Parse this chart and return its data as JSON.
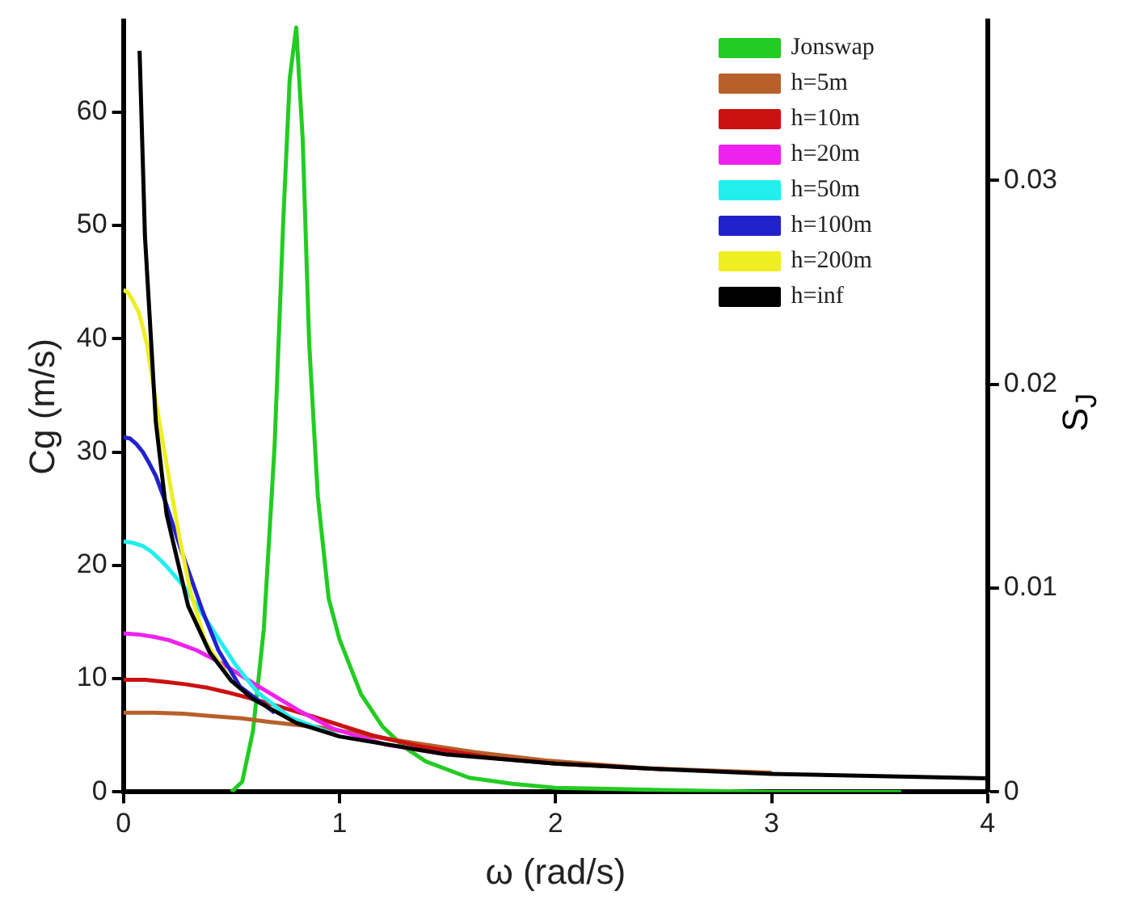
{
  "chart_data": {
    "type": "line",
    "xlabel": "ω (rad/s)",
    "ylabel": "Cg (m/s)",
    "y2label": "S$_{J}$",
    "xlim": [
      0,
      4
    ],
    "xticks": [
      0,
      1,
      2,
      3,
      4
    ],
    "ylim": [
      0,
      68
    ],
    "yticks": [
      0,
      10,
      20,
      30,
      40,
      50,
      60
    ],
    "y2lim": [
      0,
      0.0378
    ],
    "y2ticks": [
      0,
      0.01,
      0.02,
      0.03
    ],
    "grid": false,
    "legend": "top right",
    "marker": "none",
    "line_style": "solid",
    "series": [
      {
        "name": "Jonswap",
        "color": "#22cc22",
        "axis": "y2",
        "x": [
          0.5,
          0.55,
          0.6,
          0.65,
          0.7,
          0.74,
          0.77,
          0.8,
          0.83,
          0.86,
          0.9,
          0.95,
          1.0,
          1.1,
          1.2,
          1.3,
          1.4,
          1.6,
          1.8,
          2.0,
          2.5,
          3.0,
          3.6
        ],
        "values": [
          0,
          0.0005,
          0.003,
          0.008,
          0.017,
          0.028,
          0.035,
          0.0375,
          0.032,
          0.022,
          0.0145,
          0.0095,
          0.0075,
          0.0048,
          0.0032,
          0.0022,
          0.0015,
          0.0007,
          0.0004,
          0.0002,
          0.0001,
          0,
          0
        ]
      },
      {
        "name": "h=5m",
        "color": "#b8602a",
        "x": [
          0,
          0.14,
          0.28,
          0.41,
          0.55,
          0.67,
          0.91,
          1.22,
          1.63,
          1.95,
          2.42,
          3
        ],
        "values": [
          7.0,
          7.0,
          6.9,
          6.7,
          6.5,
          6.2,
          5.7,
          4.7,
          3.5,
          2.8,
          2.1,
          1.7
        ]
      },
      {
        "name": "h=10m",
        "color": "#cc1111",
        "x": [
          0,
          0.1,
          0.2,
          0.29,
          0.39,
          0.48,
          0.64,
          0.87,
          1.15,
          1.38,
          1.71,
          2,
          2.5
        ],
        "values": [
          9.9,
          9.9,
          9.7,
          9.5,
          9.2,
          8.8,
          8.0,
          6.7,
          5.0,
          4.0,
          3.0,
          2.5,
          2.0
        ]
      },
      {
        "name": "h=20m",
        "color": "#ee22ee",
        "x": [
          0,
          0.07,
          0.14,
          0.21,
          0.27,
          0.34,
          0.46,
          0.61,
          0.82,
          0.97,
          1.21,
          1.5
        ],
        "values": [
          14.0,
          13.9,
          13.7,
          13.4,
          13.0,
          12.5,
          11.3,
          9.5,
          7.1,
          5.6,
          4.2,
          3.3
        ]
      },
      {
        "name": "h=50m",
        "color": "#22eeee",
        "x": [
          0,
          0.04,
          0.09,
          0.13,
          0.17,
          0.21,
          0.29,
          0.39,
          0.52,
          0.62,
          0.77,
          1
        ],
        "values": [
          22.1,
          22.0,
          21.7,
          21.2,
          20.5,
          19.7,
          17.9,
          15.0,
          11.2,
          8.8,
          6.6,
          4.9
        ]
      },
      {
        "name": "h=100m",
        "color": "#2222cc",
        "x": [
          0,
          0.03,
          0.06,
          0.09,
          0.12,
          0.15,
          0.2,
          0.27,
          0.37,
          0.44,
          0.54,
          0.7
        ],
        "values": [
          31.3,
          31.2,
          30.7,
          30.0,
          29.0,
          27.9,
          25.3,
          21.2,
          15.8,
          12.5,
          9.3,
          7.0
        ]
      },
      {
        "name": "h=200m",
        "color": "#eeee22",
        "x": [
          0,
          0.02,
          0.04,
          0.07,
          0.09,
          0.11,
          0.14,
          0.19,
          0.26,
          0.31,
          0.38,
          0.5
        ],
        "values": [
          44.3,
          44.1,
          43.5,
          42.4,
          41.0,
          39.4,
          35.7,
          30.0,
          22.4,
          17.7,
          13.2,
          9.8
        ]
      },
      {
        "name": "h=inf",
        "color": "#000000",
        "x": [
          0.075,
          0.1,
          0.15,
          0.2,
          0.3,
          0.4,
          0.5,
          0.6,
          0.8,
          1,
          1.5,
          2,
          2.5,
          3,
          3.5,
          4
        ],
        "values": [
          65.4,
          49.0,
          32.7,
          24.5,
          16.4,
          12.3,
          9.8,
          8.2,
          6.1,
          4.9,
          3.3,
          2.5,
          2.0,
          1.6,
          1.4,
          1.2
        ]
      }
    ]
  }
}
